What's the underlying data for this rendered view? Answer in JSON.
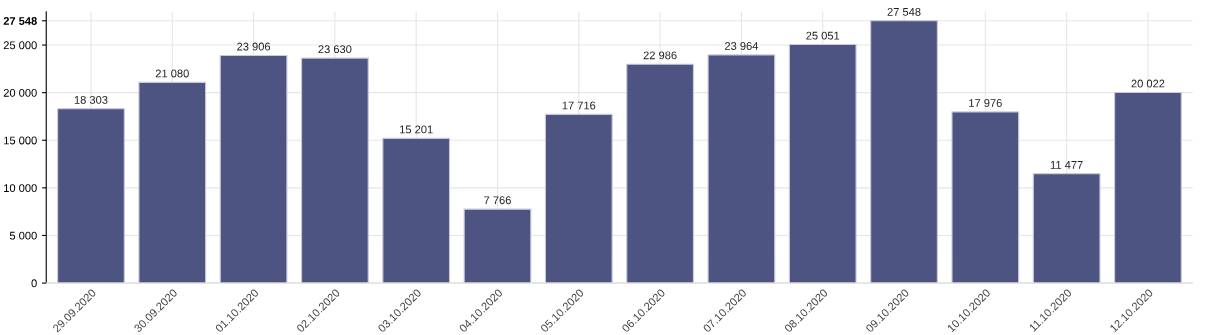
{
  "chart_data": {
    "type": "bar",
    "categories": [
      "29.09.2020",
      "30.09.2020",
      "01.10.2020",
      "02.10.2020",
      "03.10.2020",
      "04.10.2020",
      "05.10.2020",
      "06.10.2020",
      "07.10.2020",
      "08.10.2020",
      "09.10.2020",
      "10.10.2020",
      "11.10.2020",
      "12.10.2020"
    ],
    "values": [
      18303,
      21080,
      23906,
      23630,
      15201,
      7766,
      17716,
      22986,
      23964,
      25051,
      27548,
      17976,
      11477,
      20022
    ],
    "value_labels": [
      "18 303",
      "21 080",
      "23 906",
      "23 630",
      "15 201",
      "7 766",
      "17 716",
      "22 986",
      "23 964",
      "25 051",
      "27 548",
      "17 976",
      "11 477",
      "20 022"
    ],
    "color": "#4e5482",
    "ylim": [
      0,
      28500
    ],
    "yticks": [
      {
        "value": 0,
        "label": "0"
      },
      {
        "value": 5000,
        "label": "5 000"
      },
      {
        "value": 10000,
        "label": "10 000"
      },
      {
        "value": 15000,
        "label": "15 000"
      },
      {
        "value": 20000,
        "label": "20 000"
      },
      {
        "value": 25000,
        "label": "25 000"
      },
      {
        "value": 27548,
        "label": "27 548"
      }
    ],
    "grid": true
  }
}
